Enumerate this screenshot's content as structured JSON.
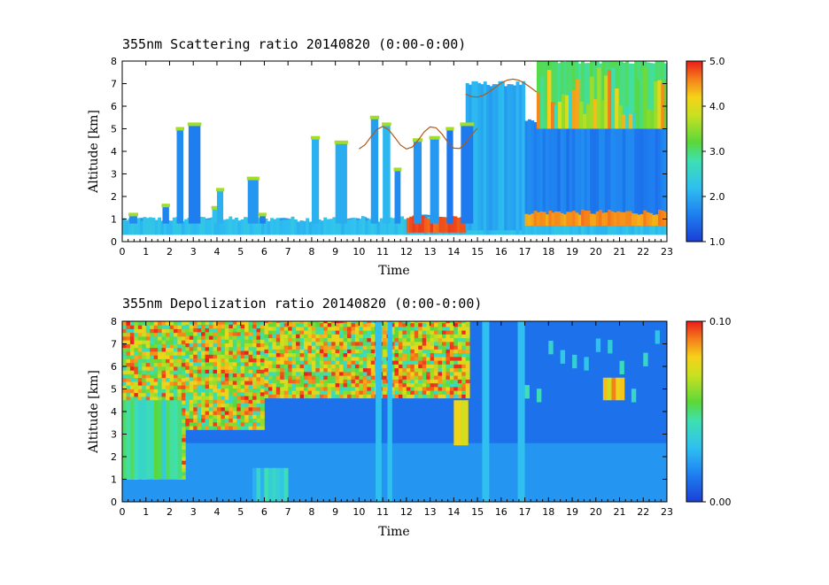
{
  "chart_data": [
    {
      "type": "heatmap",
      "title": "355nm Scattering ratio  20140820 (0:00-0:00)",
      "xlabel": "Time",
      "ylabel": "Altitude [km]",
      "xlim": [
        0,
        23
      ],
      "ylim": [
        0,
        8
      ],
      "x_ticks": [
        "0",
        "1",
        "2",
        "3",
        "4",
        "5",
        "6",
        "7",
        "8",
        "9",
        "10",
        "11",
        "12",
        "13",
        "14",
        "15",
        "16",
        "17",
        "18",
        "19",
        "20",
        "21",
        "22",
        "23"
      ],
      "y_ticks": [
        "0",
        "1",
        "2",
        "3",
        "4",
        "5",
        "6",
        "7",
        "8"
      ],
      "colorbar": {
        "min": 1.0,
        "max": 5.0,
        "labels": [
          "1.0",
          "2.0",
          "3.0",
          "4.0",
          "5.0"
        ]
      },
      "contour_color": "#b05a1a",
      "features": [
        {
          "x0": 0.0,
          "x1": 23.0,
          "y0": 0.3,
          "y1": 1.0,
          "value": 2.2
        },
        {
          "x0": 12.0,
          "x1": 14.5,
          "y0": 0.4,
          "y1": 1.1,
          "value": 4.8
        },
        {
          "x0": 14.5,
          "x1": 17.0,
          "y0": 0.5,
          "y1": 7.0,
          "value": 2.0
        },
        {
          "x0": 17.0,
          "x1": 23.0,
          "y0": 1.0,
          "y1": 5.3,
          "value": 1.6
        },
        {
          "x0": 17.0,
          "x1": 23.0,
          "y0": 0.7,
          "y1": 1.3,
          "value": 4.5
        },
        {
          "x0": 17.5,
          "x1": 23.0,
          "y0": 5.0,
          "y1": 8.0,
          "value": 3.0
        }
      ]
    },
    {
      "type": "heatmap",
      "title": "355nm Depolization ratio  20140820 (0:00-0:00)",
      "xlabel": "Time",
      "ylabel": "Altitude [km]",
      "xlim": [
        0,
        23
      ],
      "ylim": [
        0,
        8
      ],
      "x_ticks": [
        "0",
        "1",
        "2",
        "3",
        "4",
        "5",
        "6",
        "7",
        "8",
        "9",
        "10",
        "11",
        "12",
        "13",
        "14",
        "15",
        "16",
        "17",
        "18",
        "19",
        "20",
        "21",
        "22",
        "23"
      ],
      "y_ticks": [
        "0",
        "1",
        "2",
        "3",
        "4",
        "5",
        "6",
        "7",
        "8"
      ],
      "colorbar": {
        "min": 0.0,
        "max": 0.1,
        "labels": [
          "0.00",
          "0.10"
        ]
      },
      "features": [
        {
          "x0": 0.0,
          "x1": 14.5,
          "y0": 4.5,
          "y1": 8.0,
          "value": 0.07
        },
        {
          "x0": 0.0,
          "x1": 2.5,
          "y0": 1.0,
          "y1": 4.5,
          "value": 0.055
        },
        {
          "x0": 14.0,
          "x1": 14.6,
          "y0": 2.5,
          "y1": 4.5,
          "value": 0.08
        },
        {
          "x0": 20.3,
          "x1": 21.2,
          "y0": 4.5,
          "y1": 5.5,
          "value": 0.09
        },
        {
          "x0": 5.5,
          "x1": 7.0,
          "y0": 0.0,
          "y1": 1.5,
          "value": 0.045
        }
      ]
    }
  ]
}
